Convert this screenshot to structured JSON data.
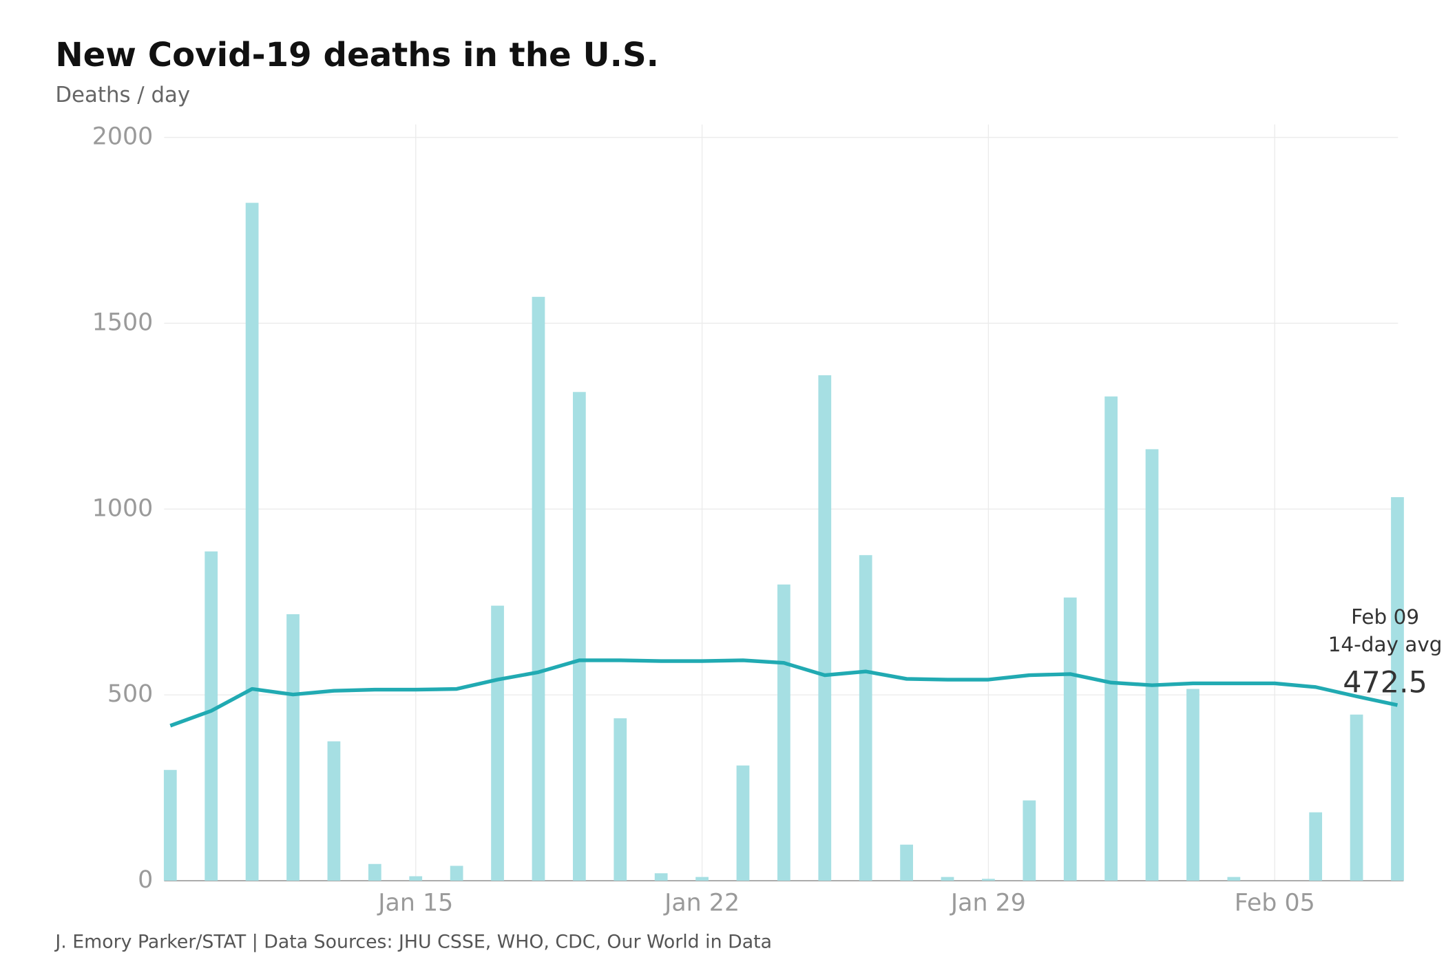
{
  "chart_data": {
    "type": "combo",
    "title": "New Covid-19 deaths in the U.S.",
    "subtitle": "Deaths / day",
    "source": "J. Emory Parker/STAT | Data Sources: JHU CSSE, WHO, CDC, Our World in Data",
    "x": [
      "Jan 09",
      "Jan 10",
      "Jan 11",
      "Jan 12",
      "Jan 13",
      "Jan 14",
      "Jan 15",
      "Jan 16",
      "Jan 17",
      "Jan 18",
      "Jan 19",
      "Jan 20",
      "Jan 21",
      "Jan 22",
      "Jan 23",
      "Jan 24",
      "Jan 25",
      "Jan 26",
      "Jan 27",
      "Jan 28",
      "Jan 29",
      "Jan 30",
      "Jan 31",
      "Feb 01",
      "Feb 02",
      "Feb 03",
      "Feb 04",
      "Feb 05",
      "Feb 06",
      "Feb 07",
      "Feb 08"
    ],
    "xticks": [
      "Jan 15",
      "Jan 22",
      "Jan 29",
      "Feb 05"
    ],
    "series": [
      {
        "type": "bar",
        "color": "#a6dfe3",
        "values": [
          298,
          886,
          1824,
          717,
          375,
          45,
          12,
          40,
          740,
          1571,
          1315,
          437,
          20,
          10,
          310,
          797,
          1360,
          876,
          97,
          10,
          5,
          216,
          762,
          1303,
          1161,
          516,
          10,
          0,
          184,
          447,
          1032
        ]
      },
      {
        "type": "line",
        "color": "#21aab2",
        "values": [
          417,
          457,
          516,
          501,
          511,
          514,
          514,
          516,
          541,
          561,
          593,
          593,
          591,
          591,
          593,
          586,
          553,
          563,
          543,
          541,
          541,
          553,
          556,
          533,
          526,
          531,
          531,
          531,
          521,
          496,
          472.5
        ]
      }
    ],
    "annotation": {
      "date": "Feb 09",
      "label": "14-day avg"
    },
    "ylim": [
      0,
      2000
    ],
    "yticks": [
      0,
      500,
      1000,
      1500,
      2000
    ],
    "grid": true
  }
}
